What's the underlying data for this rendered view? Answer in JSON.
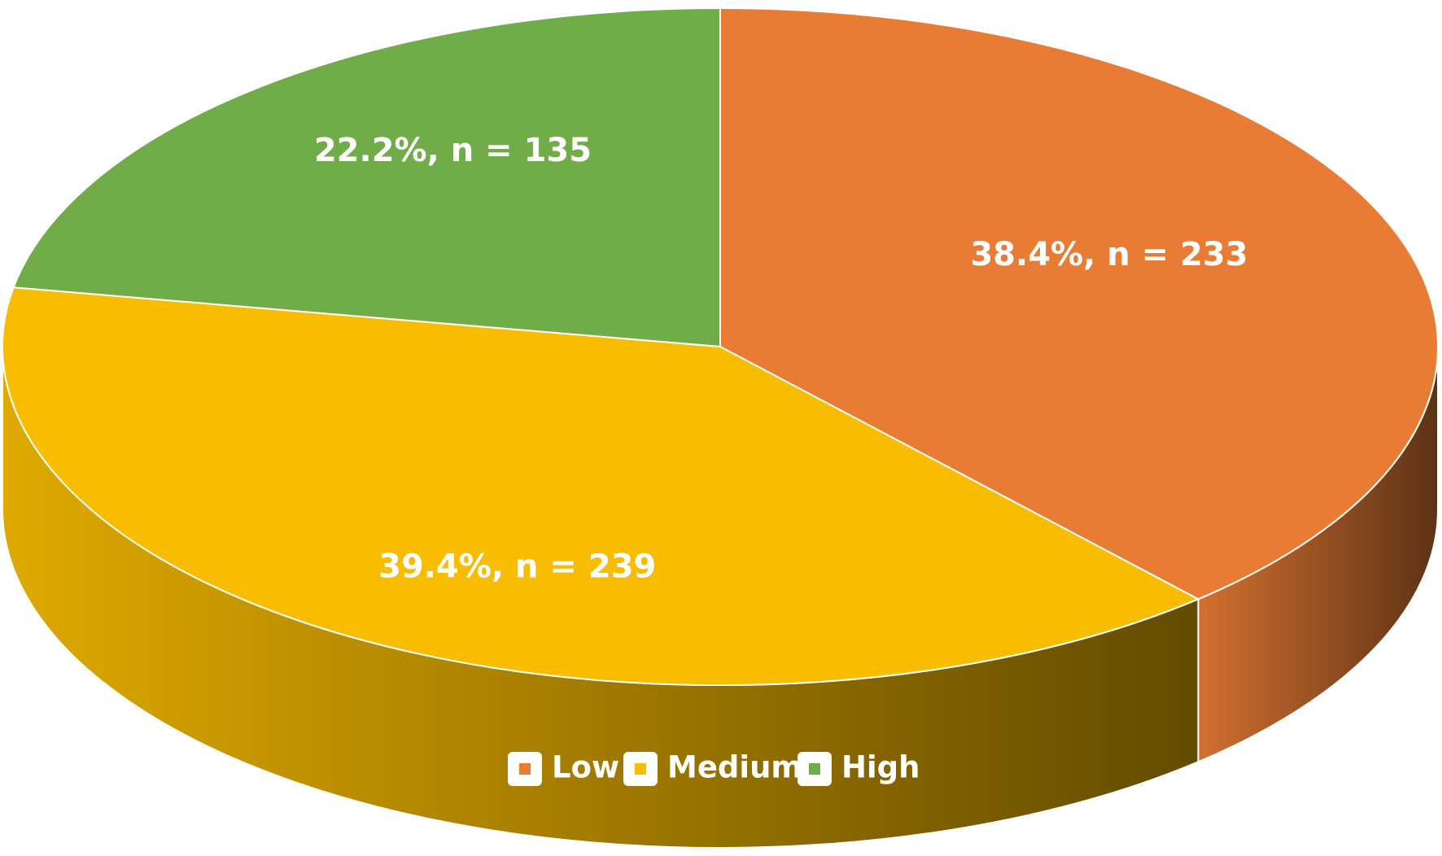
{
  "chart_data": {
    "type": "pie",
    "categories": [
      "Low",
      "Medium",
      "High"
    ],
    "values": [
      38.4,
      39.4,
      22.2
    ],
    "value_labels": [
      "38.4%, n = 233",
      "39.4%, n = 239",
      "22.2%, n = 135"
    ],
    "colors": [
      "#e97c35",
      "#f8bc00",
      "#70ac47"
    ],
    "legend": "bottom"
  }
}
